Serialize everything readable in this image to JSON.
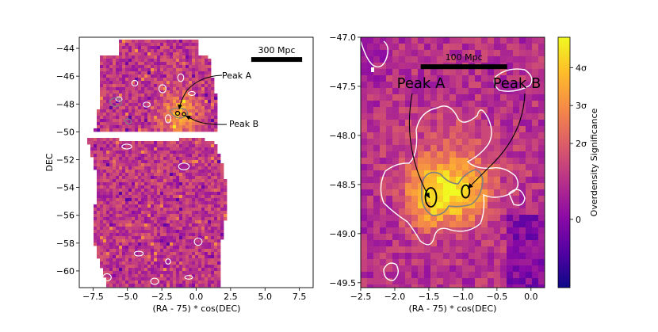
{
  "colors": {
    "cmap": [
      "#0d0887",
      "#5302a3",
      "#8b0aa5",
      "#b83289",
      "#db5c68",
      "#f48849",
      "#febd2a",
      "#f0f921"
    ],
    "contour_white": "#ffffff",
    "contour_gray": "#808080",
    "contour_black": "#000000"
  },
  "chart_data": [
    {
      "type": "heatmap",
      "panel": "left",
      "title": "",
      "xlabel": "(RA - 75) * cos(DEC)",
      "ylabel": "DEC",
      "xlim": [
        -8.5,
        8.5
      ],
      "ylim": [
        -61.2,
        -43.2
      ],
      "xticks": [
        -7.5,
        -5.0,
        -2.5,
        0.0,
        2.5,
        5.0,
        7.5
      ],
      "xtick_labels": [
        "−7.5",
        "−5.0",
        "−2.5",
        "0.0",
        "2.5",
        "5.0",
        "7.5"
      ],
      "yticks": [
        -44,
        -46,
        -48,
        -50,
        -52,
        -54,
        -56,
        -58,
        -60
      ],
      "ytick_labels": [
        "−44",
        "−46",
        "−48",
        "−50",
        "−52",
        "−54",
        "−56",
        "−58",
        "−60"
      ],
      "scale_bar": {
        "label": "300 Mpc",
        "x_start": 4.0,
        "x_end": 7.7,
        "y": -44.8
      },
      "annotations": [
        {
          "text": "Peak A",
          "target": [
            -0.9,
            -48.5
          ],
          "text_pos": [
            2.0,
            -47.0
          ]
        },
        {
          "text": "Peak B",
          "target": [
            -0.6,
            -48.6
          ],
          "text_pos": [
            2.5,
            -49.6
          ]
        }
      ],
      "footprint_note": "Survey footprint, gap near DEC -50"
    },
    {
      "type": "heatmap",
      "panel": "right",
      "title": "",
      "xlabel": "(RA - 75) * cos(DEC)",
      "ylabel": "",
      "xlim": [
        -2.5,
        0.2
      ],
      "ylim": [
        -49.55,
        -47.0
      ],
      "xticks": [
        -2.5,
        -2.0,
        -1.5,
        -1.0,
        -0.5,
        0.0
      ],
      "xtick_labels": [
        "−2.5",
        "−2.0",
        "−1.5",
        "−1.0",
        "−0.5",
        "0.0"
      ],
      "yticks": [
        -47.0,
        -47.5,
        -48.0,
        -48.5,
        -49.0,
        -49.5
      ],
      "ytick_labels": [
        "−47.0",
        "−47.5",
        "−48.0",
        "−48.5",
        "−49.0",
        "−49.5"
      ],
      "scale_bar": {
        "label": "100 Mpc",
        "x_start": -1.62,
        "x_end": -0.35,
        "y": -47.3
      },
      "annotations": [
        {
          "text": "Peak A",
          "target": [
            -1.45,
            -48.63
          ],
          "text_pos": [
            -1.75,
            -47.4
          ]
        },
        {
          "text": "Peak B",
          "target": [
            -0.96,
            -48.56
          ],
          "text_pos": [
            -0.15,
            -47.4
          ]
        }
      ],
      "peaks": [
        {
          "name": "Peak A",
          "x": -1.47,
          "y": -48.63
        },
        {
          "name": "Peak B",
          "x": -0.96,
          "y": -48.57
        }
      ]
    },
    {
      "type": "colorbar",
      "label": "Overdensity Significance",
      "ticks": [
        {
          "label": "0",
          "value": 0.0
        },
        {
          "label": "2σ",
          "value": 2.0
        },
        {
          "label": "3σ",
          "value": 3.0
        },
        {
          "label": "4σ",
          "value": 4.0
        }
      ],
      "range": [
        -1.8,
        4.8
      ]
    }
  ]
}
